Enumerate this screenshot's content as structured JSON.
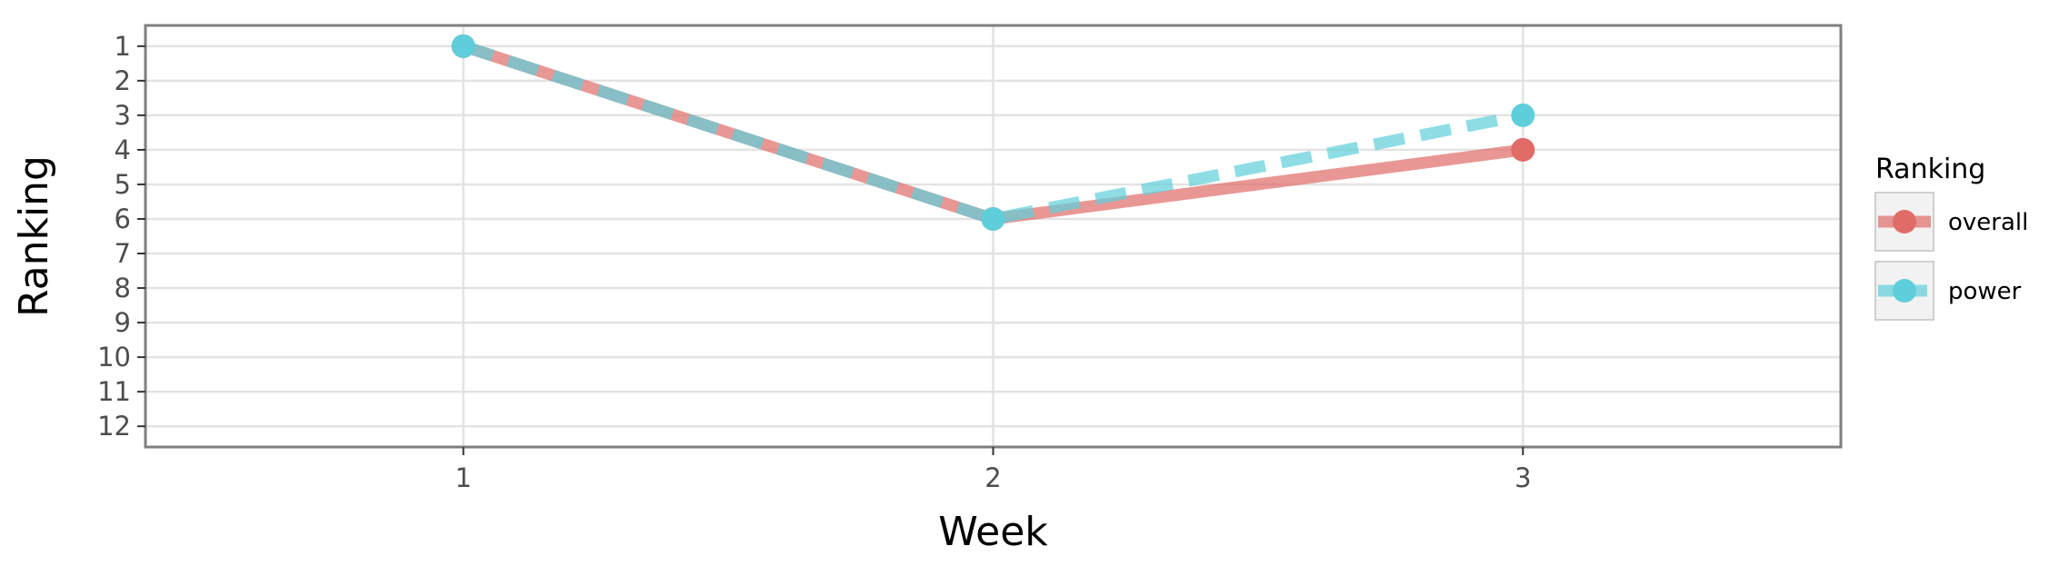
{
  "chart_data": {
    "type": "line",
    "title": "",
    "xlabel": "Week",
    "ylabel": "Ranking",
    "x": [
      1,
      2,
      3
    ],
    "xlim": [
      0.4,
      3.6
    ],
    "ylim": [
      12.6,
      0.4
    ],
    "y_reversed": true,
    "xticks": [
      1,
      2,
      3
    ],
    "yticks": [
      1,
      2,
      3,
      4,
      5,
      6,
      7,
      8,
      9,
      10,
      11,
      12
    ],
    "grid": true,
    "legend": {
      "title": "Ranking",
      "position": "right"
    },
    "series": [
      {
        "name": "overall",
        "values": [
          1,
          6,
          4
        ],
        "color": "#e06b67",
        "line": "solid"
      },
      {
        "name": "power",
        "values": [
          1,
          6,
          3
        ],
        "color": "#5ecfda",
        "line": "dashed"
      }
    ]
  }
}
